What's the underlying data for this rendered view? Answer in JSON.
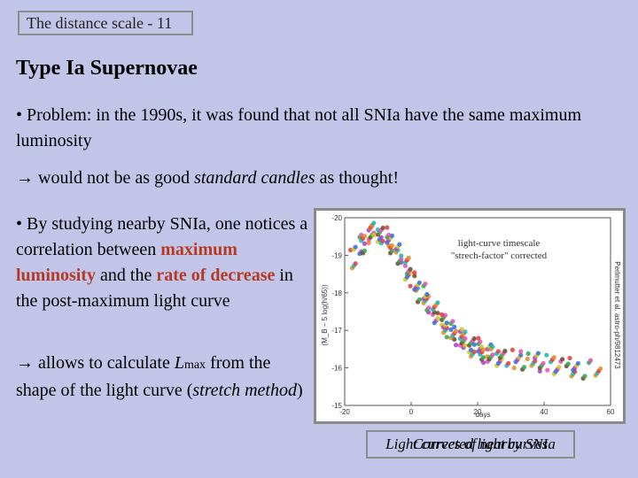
{
  "slide_tag": "The distance scale - 11",
  "heading": "Type Ia Supernovae",
  "para1": {
    "bullet": "•",
    "text": "Problem: in the 1990s, it was found that not all SNIa have the same maximum luminosity"
  },
  "para2": {
    "arrow": "→",
    "before": "would not be as good",
    "emph": "standard candles",
    "after": "as thought!"
  },
  "para3": {
    "bullet": "•",
    "before": "By studying nearby SNIa, one notices a correlation between",
    "red1": "maximum luminosity",
    "mid": "and the",
    "red2": "rate of decrease",
    "after": "in the post-maximum light curve"
  },
  "para4": {
    "arrow": "→",
    "before": "allows to calculate",
    "var": "L",
    "sub": "max",
    "mid": "from the shape of the light curve (",
    "emph": "stretch method",
    "after": ")"
  },
  "caption": {
    "line1": "Light curves of nearby SNIa",
    "line2": "Corrected light curves"
  },
  "colors": {
    "accent_red": "#b53a24",
    "background": "#c2c5e8"
  },
  "chart_data": {
    "type": "scatter",
    "annotation": [
      "light-curve timescale",
      "\"strech-factor\" corrected"
    ],
    "xlabel": "days",
    "ylabel": "(M_B − 5 log(h/65))",
    "xlim": [
      -20,
      60
    ],
    "ylim": [
      -15,
      -20
    ],
    "y_inverted": true,
    "x_ticks": [
      -20,
      0,
      20,
      40,
      60
    ],
    "y_ticks": [
      -20,
      -19,
      -18,
      -17,
      -16,
      -15
    ],
    "side_text": "Perlmutter et al. astro-ph/9812473",
    "series": [
      {
        "x": [
          -17,
          -16,
          -15,
          -14,
          -13,
          -12,
          -11,
          -10,
          -9,
          -8,
          -7,
          -6,
          -5,
          -4,
          -3,
          -2,
          -1,
          0,
          1,
          2,
          3,
          4,
          5,
          6,
          7,
          8,
          9,
          10,
          11,
          12,
          13,
          14,
          15,
          16,
          17,
          18,
          19,
          20,
          21,
          22,
          23,
          24,
          25,
          26,
          28,
          30,
          32,
          34,
          36,
          38,
          40,
          42,
          44,
          46,
          48,
          50,
          53,
          56
        ],
        "values": [
          -18.9,
          -19.1,
          -19.3,
          -19.45,
          -19.55,
          -19.6,
          -19.62,
          -19.6,
          -19.55,
          -19.5,
          -19.4,
          -19.3,
          -19.2,
          -19.05,
          -18.9,
          -18.75,
          -18.6,
          -18.45,
          -18.3,
          -18.15,
          -18.0,
          -17.85,
          -17.72,
          -17.6,
          -17.5,
          -17.38,
          -17.28,
          -17.18,
          -17.08,
          -17.0,
          -16.92,
          -16.85,
          -16.78,
          -16.72,
          -16.66,
          -16.6,
          -16.55,
          -16.5,
          -16.46,
          -16.42,
          -16.38,
          -16.35,
          -16.32,
          -16.3,
          -16.27,
          -16.24,
          -16.22,
          -16.2,
          -16.18,
          -16.15,
          -16.12,
          -16.1,
          -16.08,
          -16.05,
          -16.02,
          -16.0,
          -15.96,
          -15.92
        ]
      }
    ]
  }
}
